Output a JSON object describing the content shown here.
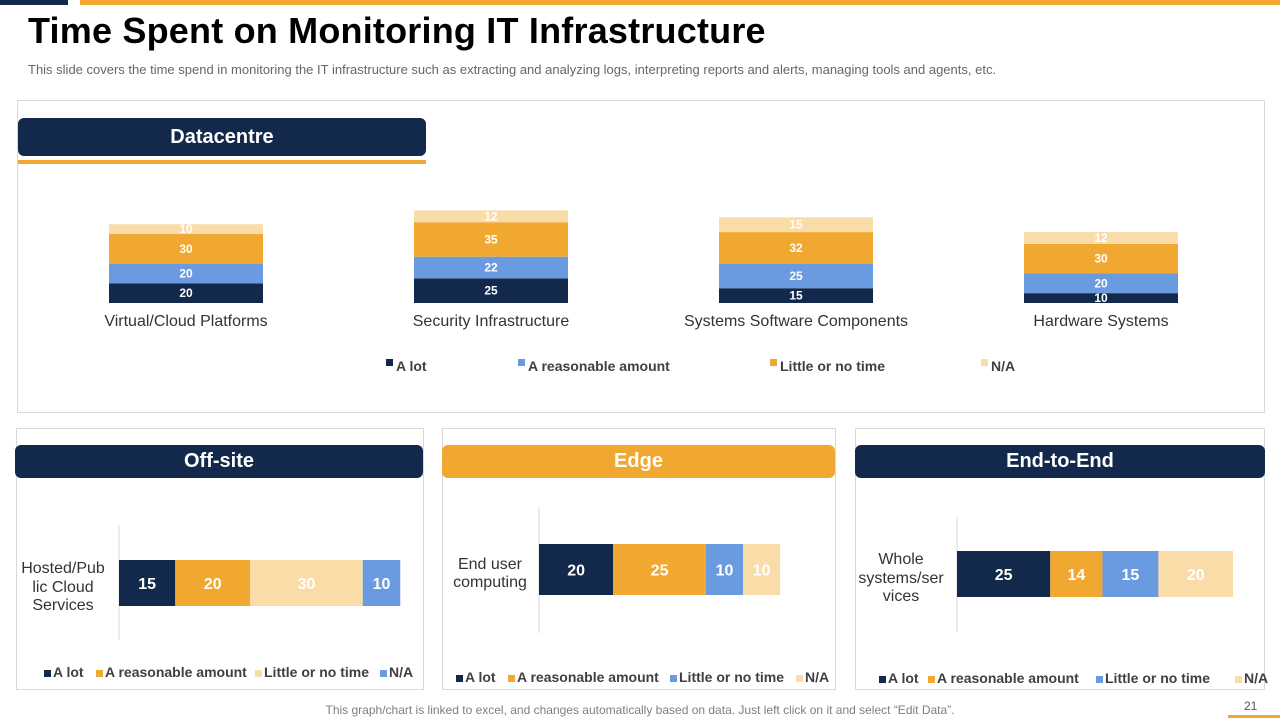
{
  "title": "Time Spent on Monitoring IT Infrastructure",
  "subtitle": "This slide covers the time spend in monitoring the IT infrastructure such as extracting and analyzing logs, interpreting reports and alerts, managing tools and agents, etc.",
  "footer": "This graph/chart is linked to excel, and changes automatically based on data. Just left click on it and select “Edit Data”.",
  "page_number": "21",
  "sections": {
    "datacentre": "Datacentre",
    "offsite": "Off-site",
    "edge": "Edge",
    "e2e": "End-to-End"
  },
  "colors": {
    "navy": "#13294b",
    "blue": "#6a9be0",
    "gold": "#f0a830",
    "light": "#f9dca8"
  },
  "chart_data": [
    {
      "id": "datacentre",
      "type": "bar",
      "stacked": true,
      "orientation": "vertical",
      "categories": [
        "Virtual/Cloud Platforms",
        "Security Infrastructure",
        "Systems Software Components",
        "Hardware Systems"
      ],
      "series": [
        {
          "name": "A  lot",
          "color": "#13294b",
          "values": [
            20,
            25,
            15,
            10
          ]
        },
        {
          "name": "A  reasonable amount",
          "color": "#6a9be0",
          "values": [
            20,
            22,
            25,
            20
          ]
        },
        {
          "name": "Little or no time",
          "color": "#f0a830",
          "values": [
            30,
            35,
            32,
            30
          ]
        },
        {
          "name": "N/A",
          "color": "#f9dca8",
          "values": [
            10,
            12,
            15,
            12
          ]
        }
      ],
      "legend": "bottom"
    },
    {
      "id": "offsite",
      "type": "bar",
      "stacked": true,
      "orientation": "horizontal",
      "categories": [
        "Hosted/Pub lic Cloud Services"
      ],
      "category_lines": [
        "Hosted/Pub",
        "lic Cloud",
        "Services"
      ],
      "series": [
        {
          "name": "A lot",
          "color": "#13294b",
          "values": [
            15
          ]
        },
        {
          "name": "A reasonable amount",
          "color": "#f0a830",
          "values": [
            20
          ]
        },
        {
          "name": "Little or no time",
          "color": "#f9dca8",
          "values": [
            30
          ]
        },
        {
          "name": "N/A",
          "color": "#6a9be0",
          "values": [
            10
          ]
        }
      ],
      "legend": "bottom"
    },
    {
      "id": "edge",
      "type": "bar",
      "stacked": true,
      "orientation": "horizontal",
      "categories": [
        "End user computing"
      ],
      "category_lines": [
        "End user",
        "computing"
      ],
      "series": [
        {
          "name": "A  lot",
          "color": "#13294b",
          "values": [
            20
          ]
        },
        {
          "name": "A  reasonable amount",
          "color": "#f0a830",
          "values": [
            25
          ]
        },
        {
          "name": "Little or no time",
          "color": "#6a9be0",
          "values": [
            10
          ]
        },
        {
          "name": "N/A",
          "color": "#f9dca8",
          "values": [
            10
          ]
        }
      ],
      "legend": "bottom"
    },
    {
      "id": "e2e",
      "type": "bar",
      "stacked": true,
      "orientation": "horizontal",
      "categories": [
        "Whole systems/ser vices"
      ],
      "category_lines": [
        "Whole",
        "systems/ser",
        "vices"
      ],
      "series": [
        {
          "name": "A  lot",
          "color": "#13294b",
          "values": [
            25
          ]
        },
        {
          "name": "A  reasonable amount",
          "color": "#f0a830",
          "values": [
            14
          ]
        },
        {
          "name": "Little or no time",
          "color": "#6a9be0",
          "values": [
            15
          ]
        },
        {
          "name": "N/A",
          "color": "#f9dca8",
          "values": [
            20
          ]
        }
      ],
      "legend": "bottom"
    }
  ]
}
